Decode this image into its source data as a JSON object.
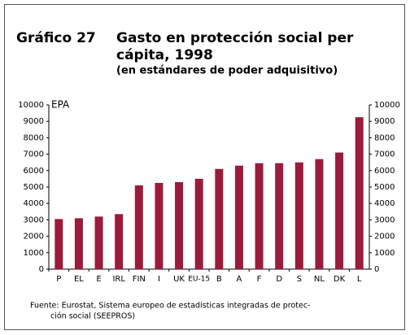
{
  "chart_data": {
    "type": "bar",
    "title_number": "Gráfico 27",
    "title_lines": [
      "Gasto en protección social per",
      "cápita, 1998"
    ],
    "subtitle": "(en estándares de poder adquisitivo)",
    "y_axis_label": "EPA",
    "categories": [
      "P",
      "EL",
      "E",
      "IRL",
      "FIN",
      "I",
      "UK",
      "EU-15",
      "B",
      "A",
      "F",
      "D",
      "S",
      "NL",
      "DK",
      "L"
    ],
    "values": [
      3050,
      3100,
      3200,
      3350,
      5100,
      5250,
      5300,
      5500,
      6100,
      6300,
      6450,
      6450,
      6500,
      6700,
      7100,
      9250
    ],
    "color": "#9b1b3c",
    "ylim": [
      0,
      10000
    ],
    "yticks": [
      0,
      1000,
      2000,
      3000,
      4000,
      5000,
      6000,
      7000,
      8000,
      9000,
      10000
    ],
    "y2lim": [
      0,
      10000
    ],
    "y2ticks": [
      0,
      1000,
      2000,
      3000,
      4000,
      5000,
      6000,
      7000,
      8000,
      9000,
      10000
    ],
    "source": [
      "Fuente: Eurostat, Sistema europeo de estadísticas integradas de protec-",
      "ción social (SEEPROS)"
    ]
  }
}
